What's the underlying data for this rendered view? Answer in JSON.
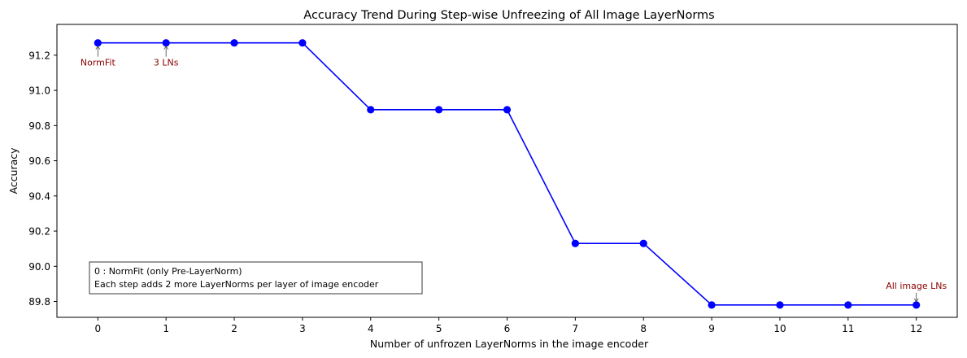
{
  "chart_data": {
    "type": "line",
    "title": "Accuracy Trend During Step-wise Unfreezing of All Image LayerNorms",
    "xlabel": "Number of unfrozen LayerNorms in the image encoder",
    "ylabel": "Accuracy",
    "x": [
      0,
      1,
      2,
      3,
      4,
      5,
      6,
      7,
      8,
      9,
      10,
      11,
      12
    ],
    "series": [
      {
        "values": [
          91.27,
          91.27,
          91.27,
          91.27,
          90.89,
          90.89,
          90.89,
          90.13,
          90.13,
          89.78,
          89.78,
          89.78,
          89.78
        ],
        "color": "#0000ff",
        "marker": "circle"
      }
    ],
    "xlim": [
      -0.6,
      12.6
    ],
    "ylim": [
      89.71,
      91.375
    ],
    "xticks": [
      0,
      1,
      2,
      3,
      4,
      5,
      6,
      7,
      8,
      9,
      10,
      11,
      12
    ],
    "yticks": [
      89.8,
      90.0,
      90.2,
      90.4,
      90.6,
      90.8,
      91.0,
      91.2
    ],
    "grid": false,
    "annotations": [
      {
        "text": "NormFit",
        "x": 0,
        "y": 91.27,
        "placement": "below",
        "color": "#8b0000"
      },
      {
        "text": "3 LNs",
        "x": 1,
        "y": 91.27,
        "placement": "below",
        "color": "#8b0000"
      },
      {
        "text": "All image LNs",
        "x": 12,
        "y": 89.78,
        "placement": "above",
        "color": "#8b0000"
      }
    ],
    "text_box": {
      "lines": [
        "0 : NormFit (only Pre-LayerNorm)",
        "Each step adds 2 more LayerNorms per layer of image encoder"
      ],
      "placement": "lower-left"
    }
  }
}
